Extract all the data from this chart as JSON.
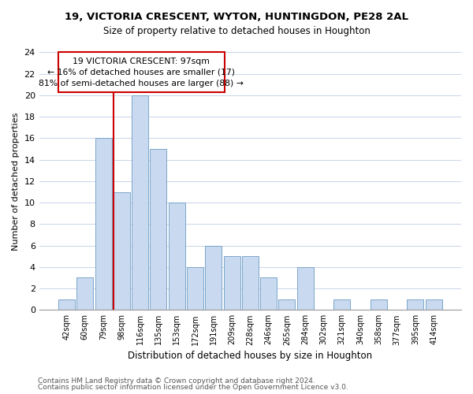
{
  "title": "19, VICTORIA CRESCENT, WYTON, HUNTINGDON, PE28 2AL",
  "subtitle": "Size of property relative to detached houses in Houghton",
  "bar_labels": [
    "42sqm",
    "60sqm",
    "79sqm",
    "98sqm",
    "116sqm",
    "135sqm",
    "153sqm",
    "172sqm",
    "191sqm",
    "209sqm",
    "228sqm",
    "246sqm",
    "265sqm",
    "284sqm",
    "302sqm",
    "321sqm",
    "340sqm",
    "358sqm",
    "377sqm",
    "395sqm",
    "414sqm"
  ],
  "bar_values": [
    1,
    3,
    16,
    11,
    20,
    15,
    10,
    4,
    6,
    5,
    5,
    3,
    1,
    4,
    0,
    1,
    0,
    1,
    0,
    1,
    1
  ],
  "bar_color": "#c9d9ef",
  "bar_edge_color": "#7aa6cc",
  "ylim": [
    0,
    24
  ],
  "yticks": [
    0,
    2,
    4,
    6,
    8,
    10,
    12,
    14,
    16,
    18,
    20,
    22,
    24
  ],
  "ylabel": "Number of detached properties",
  "xlabel": "Distribution of detached houses by size in Houghton",
  "property_line_idx": 3,
  "property_label": "19 VICTORIA CRESCENT: 97sqm",
  "annotation_line1": "← 16% of detached houses are smaller (17)",
  "annotation_line2": "81% of semi-detached houses are larger (88) →",
  "annotation_box_color": "#ffffff",
  "annotation_box_edge": "#cc0000",
  "property_line_color": "#cc0000",
  "footer1": "Contains HM Land Registry data © Crown copyright and database right 2024.",
  "footer2": "Contains public sector information licensed under the Open Government Licence v3.0.",
  "bg_color": "#ffffff",
  "grid_color": "#c8d4e8"
}
